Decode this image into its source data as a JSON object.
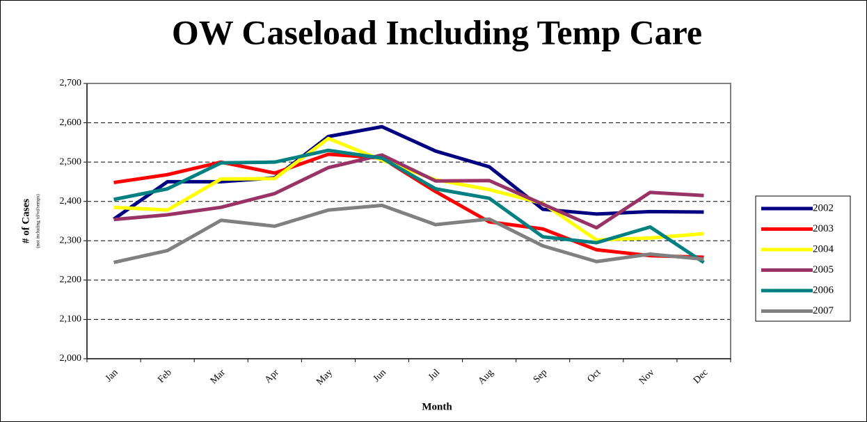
{
  "chart_data": {
    "type": "line",
    "title": "OW Caseload Including Temp Care",
    "xlabel": "Month",
    "ylabel": "# of Cases",
    "ylabel_note": "(not including td/vd/semps)",
    "categories": [
      "Jan",
      "Feb",
      "Mar",
      "Apr",
      "May",
      "Jun",
      "Jul",
      "Aug",
      "Sep",
      "Oct",
      "Nov",
      "Dec"
    ],
    "series": [
      {
        "name": "2002",
        "color": "#000080",
        "values": [
          2355,
          2450,
          2450,
          2460,
          2565,
          2590,
          2528,
          2488,
          2380,
          2368,
          2374,
          2373
        ]
      },
      {
        "name": "2003",
        "color": "#ff0000",
        "values": [
          2448,
          2468,
          2500,
          2472,
          2520,
          2510,
          2425,
          2348,
          2330,
          2277,
          2262,
          2258
        ]
      },
      {
        "name": "2004",
        "color": "#ffff00",
        "values": [
          2385,
          2378,
          2457,
          2458,
          2560,
          2505,
          2455,
          2430,
          2395,
          2302,
          2307,
          2318
        ]
      },
      {
        "name": "2005",
        "color": "#993366",
        "values": [
          2354,
          2366,
          2385,
          2420,
          2486,
          2518,
          2452,
          2453,
          2393,
          2333,
          2423,
          2415
        ]
      },
      {
        "name": "2006",
        "color": "#008080",
        "values": [
          2405,
          2432,
          2498,
          2500,
          2530,
          2510,
          2432,
          2408,
          2310,
          2295,
          2335,
          2245
        ]
      },
      {
        "name": "2007",
        "color": "#808080",
        "values": [
          2245,
          2275,
          2352,
          2337,
          2378,
          2390,
          2341,
          2355,
          2287,
          2247,
          2266,
          2253
        ]
      }
    ],
    "ylim": [
      2000,
      2700
    ],
    "yticks": [
      {
        "value": 2000,
        "label": "2,000"
      },
      {
        "value": 2100,
        "label": "2,100"
      },
      {
        "value": 2200,
        "label": "2,200"
      },
      {
        "value": 2300,
        "label": "2,300"
      },
      {
        "value": 2400,
        "label": "2,400"
      },
      {
        "value": 2500,
        "label": "2,500"
      },
      {
        "value": 2600,
        "label": "2,600"
      },
      {
        "value": 2700,
        "label": "2,700"
      }
    ],
    "grid": true,
    "legend": "right"
  }
}
